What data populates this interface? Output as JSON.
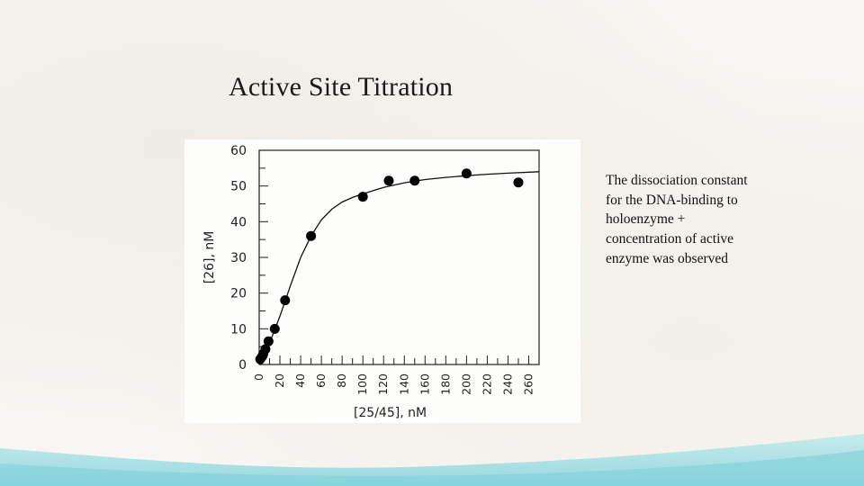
{
  "slide": {
    "title": "Active Site Titration",
    "description_lines": [
      "The dissociation constant",
      "for the DNA-binding to",
      "holoenzyme +",
      "concentration of active",
      "enzyme was observed"
    ]
  },
  "colors": {
    "background": "#f8f6f2",
    "wash": "#8fd8df",
    "marker": "#000000",
    "curve": "#111111"
  },
  "chart_data": {
    "type": "scatter",
    "title": "",
    "xlabel": "[25/45], nM",
    "ylabel": "[26], nM",
    "xlim": [
      0,
      270
    ],
    "ylim": [
      0,
      60
    ],
    "x_ticks": [
      0,
      20,
      40,
      60,
      80,
      100,
      120,
      140,
      160,
      180,
      200,
      220,
      240,
      260
    ],
    "y_ticks": [
      0,
      10,
      20,
      30,
      40,
      50,
      60
    ],
    "grid": false,
    "legend": null,
    "series": [
      {
        "name": "data",
        "kind": "points",
        "x": [
          1,
          3,
          4,
          6,
          9,
          15,
          25,
          50,
          100,
          125,
          150,
          200,
          250
        ],
        "y": [
          1.5,
          2.3,
          3.0,
          4.3,
          6.5,
          10,
          18,
          36,
          47,
          51.5,
          51.5,
          53.5,
          51
        ]
      },
      {
        "name": "fit",
        "kind": "line",
        "x": [
          0,
          10,
          20,
          30,
          40,
          50,
          60,
          70,
          80,
          90,
          100,
          120,
          140,
          160,
          180,
          200,
          220,
          240,
          270
        ],
        "y": [
          0,
          6,
          13.5,
          22,
          30,
          36,
          40.5,
          43.5,
          45.5,
          46.8,
          47.8,
          49.6,
          50.9,
          51.8,
          52.4,
          52.9,
          53.3,
          53.6,
          54
        ]
      }
    ]
  }
}
